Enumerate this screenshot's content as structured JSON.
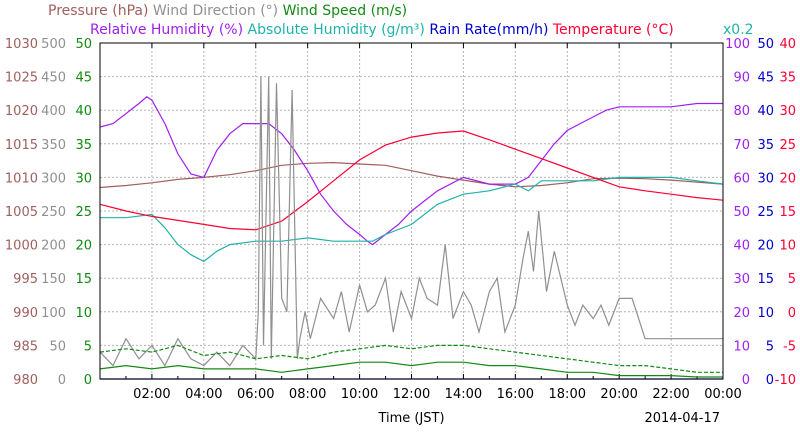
{
  "chart_data": {
    "type": "line",
    "header_row1": [
      {
        "text": "Pressure (hPa)",
        "color": "#a0605f"
      },
      {
        "text": "Wind Direction (°)",
        "color": "#909090"
      },
      {
        "text": "Wind Speed (m/s)",
        "color": "#138a13"
      }
    ],
    "header_row2": [
      {
        "text": "Relative Humidity (%)",
        "color": "#a020f0"
      },
      {
        "text": "Absolute Humidity (g/m³)",
        "color": "#20b2aa"
      },
      {
        "text": "Rain Rate(mm/h)",
        "color": "#0000cd"
      },
      {
        "text": "Temperature (°C)",
        "color": "#ff0033"
      }
    ],
    "scale_note": {
      "text": "x0.2",
      "color": "#20b2aa"
    },
    "xlabel": "Time (JST)",
    "date_label": "2014-04-17",
    "x_ticks": [
      "02:00",
      "04:00",
      "06:00",
      "08:00",
      "10:00",
      "12:00",
      "14:00",
      "16:00",
      "18:00",
      "20:00",
      "22:00",
      "00:00"
    ],
    "x_range_hours": [
      0,
      24
    ],
    "axes": {
      "pressure": {
        "color": "#a0605f",
        "ticks": [
          "980",
          "985",
          "990",
          "995",
          "1000",
          "1005",
          "1010",
          "1015",
          "1020",
          "1025",
          "1030"
        ],
        "range": [
          980,
          1030
        ]
      },
      "wind_direction": {
        "color": "#909090",
        "ticks": [
          "0",
          "50",
          "100",
          "150",
          "200",
          "250",
          "300",
          "350",
          "400",
          "450",
          "500"
        ],
        "range": [
          0,
          500
        ]
      },
      "wind_speed": {
        "color": "#138a13",
        "ticks": [
          "0",
          "5",
          "10",
          "15",
          "20",
          "25",
          "30",
          "35",
          "40",
          "45",
          "50"
        ],
        "range": [
          0,
          50
        ]
      },
      "humidity": {
        "color": "#a020f0",
        "ticks": [
          "0",
          "10",
          "20",
          "30",
          "40",
          "50",
          "60",
          "70",
          "80",
          "90",
          "100"
        ],
        "range": [
          0,
          100
        ]
      },
      "rain_rate": {
        "color": "#0000cd",
        "ticks": [
          "0",
          "5",
          "10",
          "15",
          "20",
          "25",
          "30",
          "35",
          "40",
          "45",
          "50"
        ],
        "range": [
          0,
          50
        ]
      },
      "temperature": {
        "color": "#ff0033",
        "ticks": [
          "-10",
          "-5",
          "0",
          "5",
          "10",
          "15",
          "20",
          "25",
          "30",
          "35",
          "40"
        ],
        "range": [
          -10,
          40
        ]
      }
    },
    "series": [
      {
        "key": "pressure",
        "color": "#a0605f",
        "axis": "pressure",
        "x": [
          0,
          1,
          2,
          3,
          4,
          5,
          6,
          7,
          8,
          9,
          10,
          11,
          12,
          13,
          14,
          15,
          16,
          17,
          18,
          19,
          20,
          21,
          22,
          23,
          24
        ],
        "values": [
          1008.5,
          1008.8,
          1009.2,
          1009.7,
          1010.0,
          1010.4,
          1011.0,
          1011.8,
          1012.1,
          1012.2,
          1012.0,
          1011.8,
          1011.0,
          1010.2,
          1009.6,
          1009.0,
          1008.6,
          1008.8,
          1009.2,
          1009.8,
          1009.9,
          1009.8,
          1009.6,
          1009.3,
          1009.0
        ]
      },
      {
        "key": "relative_humidity",
        "color": "#a020f0",
        "axis": "humidity",
        "x": [
          0,
          0.5,
          1,
          1.5,
          1.8,
          2,
          2.5,
          3,
          3.5,
          4,
          4.5,
          5,
          5.5,
          6,
          6.5,
          7,
          7.5,
          8,
          8.5,
          9,
          9.5,
          10,
          10.3,
          10.5,
          11,
          11.5,
          12,
          13,
          14,
          15,
          16,
          16.5,
          17,
          17.5,
          18,
          18.5,
          19,
          19.5,
          20,
          21,
          22,
          23,
          24
        ],
        "values": [
          75,
          76,
          79,
          82,
          84,
          83,
          76,
          67,
          61,
          60,
          68,
          73,
          76,
          76,
          76,
          73,
          68,
          62,
          55,
          50,
          46,
          43,
          41,
          40,
          43,
          46,
          50,
          56,
          60,
          58,
          58,
          60,
          65,
          70,
          74,
          76,
          78,
          80,
          81,
          81,
          81,
          82,
          82
        ]
      },
      {
        "key": "absolute_humidity",
        "color": "#20b2aa",
        "axis": "humidity",
        "x": [
          0,
          1,
          2,
          2.5,
          3,
          3.5,
          4,
          4.5,
          5,
          6,
          7,
          8,
          9,
          10,
          10.5,
          11,
          12,
          13,
          14,
          15,
          16,
          16.5,
          17,
          18,
          19,
          20,
          21,
          22,
          23,
          24
        ],
        "values": [
          48,
          48,
          49,
          45,
          40,
          37,
          35,
          38,
          40,
          41,
          41,
          42,
          41,
          41,
          41,
          43,
          46,
          52,
          55,
          56,
          58,
          56,
          59,
          59,
          59,
          60,
          60,
          60,
          59,
          58
        ]
      },
      {
        "key": "temperature",
        "color": "#ff0033",
        "axis": "temperature",
        "x": [
          0,
          1,
          2,
          3,
          4,
          5,
          6,
          7,
          8,
          9,
          10,
          11,
          12,
          13,
          14,
          15,
          16,
          17,
          18,
          19,
          20,
          21,
          22,
          23,
          24
        ],
        "values": [
          16.0,
          15.0,
          14.2,
          13.6,
          13.0,
          12.4,
          12.2,
          13.5,
          16.4,
          19.5,
          22.6,
          24.8,
          26.0,
          26.6,
          26.9,
          25.6,
          24.2,
          22.8,
          21.4,
          20.0,
          18.6,
          18.0,
          17.5,
          17.0,
          16.6
        ]
      },
      {
        "key": "wind_direction",
        "color": "#909090",
        "axis": "wind_direction",
        "x": [
          0,
          0.5,
          1,
          1.5,
          2,
          2.5,
          3,
          3.5,
          4,
          4.5,
          5,
          5.5,
          6,
          6.1,
          6.2,
          6.3,
          6.5,
          6.6,
          6.8,
          7,
          7.2,
          7.4,
          7.6,
          7.7,
          7.9,
          8.1,
          8.5,
          9,
          9.3,
          9.6,
          10,
          10.3,
          10.6,
          11,
          11.3,
          11.6,
          12,
          12.3,
          12.6,
          13,
          13.3,
          13.6,
          14,
          14.3,
          14.6,
          15,
          15.3,
          15.6,
          16,
          16.3,
          16.5,
          16.7,
          16.9,
          17.2,
          17.5,
          18,
          18.3,
          18.6,
          19,
          19.3,
          19.6,
          20,
          20.5,
          21,
          22,
          23,
          24
        ],
        "values": [
          40,
          20,
          60,
          30,
          50,
          20,
          60,
          30,
          20,
          40,
          20,
          50,
          30,
          100,
          450,
          50,
          450,
          30,
          440,
          120,
          100,
          430,
          30,
          60,
          100,
          60,
          120,
          90,
          130,
          70,
          140,
          100,
          110,
          150,
          70,
          130,
          90,
          150,
          120,
          110,
          200,
          90,
          130,
          110,
          70,
          130,
          150,
          70,
          110,
          180,
          220,
          160,
          250,
          130,
          190,
          110,
          80,
          110,
          90,
          110,
          80,
          120,
          120,
          60,
          60,
          60,
          60
        ]
      },
      {
        "key": "wind_speed",
        "color": "#138a13",
        "axis": "wind_speed",
        "dashed": true,
        "x": [
          0,
          1,
          2,
          3,
          4,
          5,
          6,
          7,
          8,
          9,
          10,
          11,
          12,
          13,
          14,
          15,
          16,
          17,
          18,
          19,
          20,
          21,
          22,
          23,
          24
        ],
        "values": [
          4.0,
          4.5,
          4.0,
          5.0,
          3.5,
          4.0,
          3.0,
          3.5,
          3.0,
          4.0,
          4.5,
          5.0,
          4.5,
          5.0,
          5.0,
          4.5,
          4.0,
          3.5,
          3.0,
          2.5,
          2.0,
          2.0,
          1.5,
          1.0,
          1.0
        ]
      },
      {
        "key": "wind_speed_solid",
        "color": "#138a13",
        "axis": "wind_speed",
        "dashed": false,
        "x": [
          0,
          1,
          2,
          3,
          4,
          5,
          6,
          7,
          8,
          9,
          10,
          11,
          12,
          13,
          14,
          15,
          16,
          17,
          18,
          19,
          20,
          21,
          22,
          23,
          24
        ],
        "values": [
          1.5,
          2.0,
          1.5,
          2.0,
          1.5,
          1.5,
          1.5,
          1.0,
          1.5,
          2.0,
          2.5,
          2.5,
          2.0,
          2.5,
          2.5,
          2.0,
          2.0,
          1.5,
          1.0,
          1.0,
          0.5,
          0.5,
          0.5,
          0.3,
          0.3
        ]
      },
      {
        "key": "rain_rate",
        "color": "#0000cd",
        "axis": "rain_rate",
        "x": [
          0,
          24
        ],
        "values": [
          0,
          0
        ]
      }
    ]
  }
}
